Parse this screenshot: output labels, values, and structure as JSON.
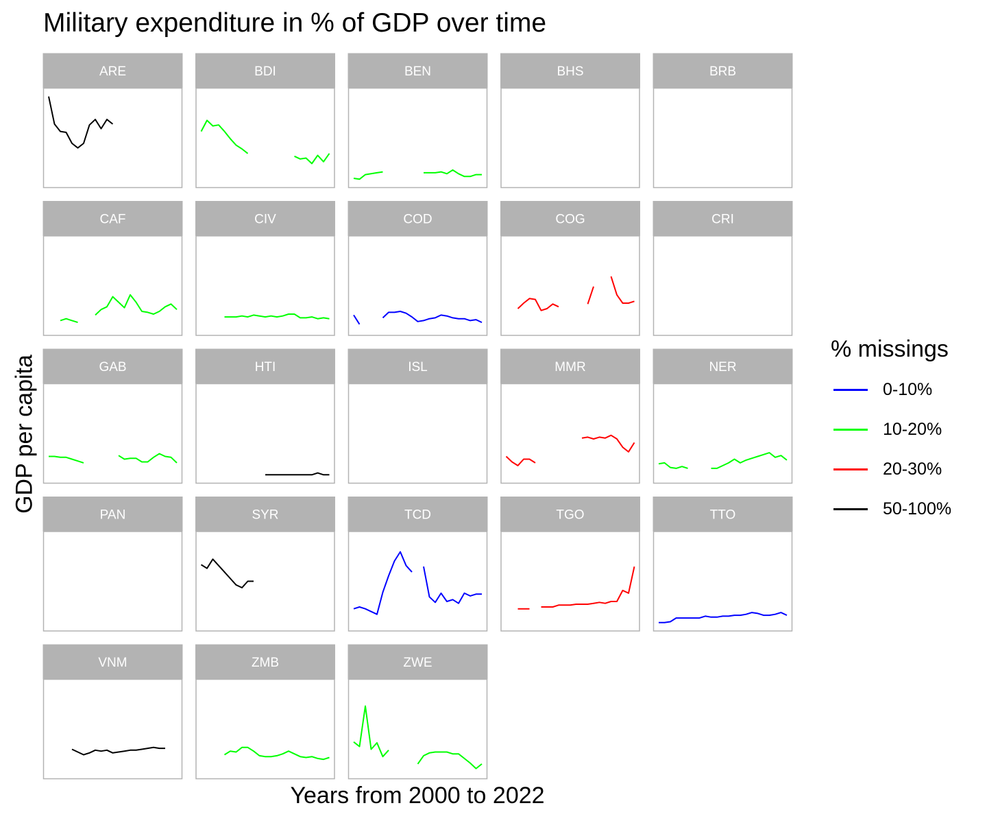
{
  "title": "Military expenditure in % of GDP over time",
  "chart_data": {
    "type": "line",
    "facets": true,
    "title": "Military expenditure in % of GDP over time",
    "xlabel": "Years from 2000 to 2022",
    "ylabel": "GDP per capita",
    "x": [
      2000,
      2001,
      2002,
      2003,
      2004,
      2005,
      2006,
      2007,
      2008,
      2009,
      2010,
      2011,
      2012,
      2013,
      2014,
      2015,
      2016,
      2017,
      2018,
      2019,
      2020,
      2021,
      2022
    ],
    "ylim": [
      0,
      1
    ],
    "xlim": [
      2000,
      2022
    ],
    "grid": false,
    "legend": {
      "title": "% missings",
      "position": "right",
      "items": [
        {
          "label": "0-10%",
          "color": "#0000ff"
        },
        {
          "label": "10-20%",
          "color": "#00ff00"
        },
        {
          "label": "20-30%",
          "color": "#ff0000"
        },
        {
          "label": "50-100%",
          "color": "#000000"
        }
      ]
    },
    "panels": [
      {
        "name": "ARE",
        "group": "50-100%",
        "values": [
          0.95,
          0.65,
          0.57,
          0.56,
          0.44,
          0.39,
          0.44,
          0.64,
          0.7,
          0.6,
          0.7,
          0.65,
          null,
          null,
          null,
          null,
          null,
          null,
          null,
          null,
          null,
          null,
          null
        ]
      },
      {
        "name": "BDI",
        "group": "10-20%",
        "values": [
          0.57,
          0.69,
          0.63,
          0.64,
          0.57,
          0.49,
          0.42,
          0.38,
          0.33,
          null,
          null,
          null,
          null,
          null,
          null,
          null,
          0.3,
          0.27,
          0.28,
          0.22,
          0.31,
          0.24,
          0.33
        ]
      },
      {
        "name": "BEN",
        "group": "10-20%",
        "values": [
          0.06,
          0.05,
          0.1,
          0.11,
          0.12,
          0.13,
          null,
          null,
          null,
          null,
          null,
          null,
          0.12,
          0.12,
          0.12,
          0.13,
          0.11,
          0.15,
          0.11,
          0.08,
          0.08,
          0.1,
          0.1
        ]
      },
      {
        "name": "BHS",
        "group": null,
        "values": []
      },
      {
        "name": "BRB",
        "group": null,
        "values": []
      },
      {
        "name": "CAF",
        "group": "10-20%",
        "values": [
          null,
          null,
          0.12,
          0.14,
          0.12,
          0.1,
          null,
          null,
          0.18,
          0.24,
          0.27,
          0.38,
          0.32,
          0.26,
          0.4,
          0.32,
          0.22,
          0.21,
          0.19,
          0.22,
          0.27,
          0.3,
          0.24
        ]
      },
      {
        "name": "CIV",
        "group": "10-20%",
        "values": [
          null,
          null,
          null,
          null,
          0.16,
          0.16,
          0.16,
          0.17,
          0.16,
          0.18,
          0.17,
          0.16,
          0.17,
          0.16,
          0.17,
          0.19,
          0.19,
          0.15,
          0.15,
          0.16,
          0.14,
          0.15,
          0.14
        ]
      },
      {
        "name": "COD",
        "group": "0-10%",
        "values": [
          0.18,
          0.08,
          null,
          null,
          null,
          0.15,
          0.21,
          0.21,
          0.22,
          0.2,
          0.16,
          0.11,
          0.12,
          0.14,
          0.15,
          0.18,
          0.17,
          0.15,
          0.14,
          0.14,
          0.12,
          0.13,
          0.1
        ]
      },
      {
        "name": "COG",
        "group": "20-30%",
        "values": [
          null,
          null,
          0.25,
          0.31,
          0.36,
          0.35,
          0.23,
          0.25,
          0.3,
          0.27,
          null,
          null,
          null,
          null,
          0.3,
          0.49,
          null,
          null,
          0.6,
          0.4,
          0.31,
          0.31,
          0.33
        ]
      },
      {
        "name": "CRI",
        "group": null,
        "values": []
      },
      {
        "name": "GAB",
        "group": "10-20%",
        "values": [
          0.25,
          0.25,
          0.24,
          0.24,
          0.22,
          0.2,
          0.18,
          null,
          null,
          null,
          null,
          null,
          0.26,
          0.22,
          0.23,
          0.23,
          0.19,
          0.19,
          0.24,
          0.28,
          0.25,
          0.24,
          0.18
        ]
      },
      {
        "name": "HTI",
        "group": "50-100%",
        "values": [
          null,
          null,
          null,
          null,
          null,
          null,
          null,
          null,
          null,
          null,
          null,
          0.05,
          0.05,
          0.05,
          0.05,
          0.05,
          0.05,
          0.05,
          0.05,
          0.05,
          0.07,
          0.05,
          0.05
        ]
      },
      {
        "name": "ISL",
        "group": null,
        "values": []
      },
      {
        "name": "MMR",
        "group": "20-30%",
        "values": [
          0.25,
          0.19,
          0.15,
          0.22,
          0.22,
          0.18,
          null,
          null,
          null,
          null,
          null,
          null,
          null,
          0.45,
          0.46,
          0.44,
          0.46,
          0.45,
          0.48,
          0.44,
          0.35,
          0.3,
          0.4
        ]
      },
      {
        "name": "NER",
        "group": "10-20%",
        "values": [
          0.17,
          0.18,
          0.13,
          0.12,
          0.14,
          0.12,
          null,
          null,
          null,
          0.12,
          0.12,
          0.15,
          0.18,
          0.22,
          0.18,
          0.21,
          0.23,
          0.25,
          0.27,
          0.29,
          0.24,
          0.26,
          0.21
        ]
      },
      {
        "name": "PAN",
        "group": null,
        "values": []
      },
      {
        "name": "SYR",
        "group": "50-100%",
        "values": [
          0.68,
          0.64,
          0.74,
          0.67,
          0.6,
          0.53,
          0.46,
          0.43,
          0.5,
          0.5,
          null,
          null,
          null,
          null,
          null,
          null,
          null,
          null,
          null,
          null,
          null,
          null,
          null
        ]
      },
      {
        "name": "TCD",
        "group": "0-10%",
        "values": [
          0.2,
          0.22,
          0.2,
          0.17,
          0.14,
          0.38,
          0.56,
          0.72,
          0.82,
          0.67,
          0.6,
          null,
          0.66,
          0.33,
          0.27,
          0.37,
          0.28,
          0.3,
          0.26,
          0.37,
          0.34,
          0.36,
          0.36
        ]
      },
      {
        "name": "TGO",
        "group": "20-30%",
        "values": [
          null,
          null,
          0.2,
          0.2,
          0.2,
          null,
          0.22,
          0.22,
          0.22,
          0.24,
          0.24,
          0.24,
          0.25,
          0.25,
          0.25,
          0.26,
          0.27,
          0.26,
          0.28,
          0.28,
          0.4,
          0.37,
          0.66
        ]
      },
      {
        "name": "TTO",
        "group": "0-10%",
        "values": [
          0.05,
          0.05,
          0.06,
          0.1,
          0.1,
          0.1,
          0.1,
          0.1,
          0.12,
          0.11,
          0.11,
          0.12,
          0.12,
          0.13,
          0.13,
          0.14,
          0.16,
          0.15,
          0.13,
          0.13,
          0.14,
          0.16,
          0.13
        ]
      },
      {
        "name": "VNM",
        "group": "50-100%",
        "values": [
          null,
          null,
          null,
          null,
          0.28,
          0.25,
          0.22,
          0.24,
          0.27,
          0.26,
          0.27,
          0.24,
          0.25,
          0.26,
          0.27,
          0.27,
          0.28,
          0.29,
          0.3,
          0.29,
          0.29,
          null,
          null
        ]
      },
      {
        "name": "ZMB",
        "group": "10-20%",
        "values": [
          null,
          null,
          null,
          null,
          0.22,
          0.26,
          0.25,
          0.3,
          0.3,
          0.26,
          0.21,
          0.2,
          0.2,
          0.21,
          0.23,
          0.26,
          0.23,
          0.2,
          0.19,
          0.2,
          0.18,
          0.17,
          0.19
        ]
      },
      {
        "name": "ZWE",
        "group": "10-20%",
        "values": [
          0.36,
          0.31,
          0.75,
          0.28,
          0.35,
          0.2,
          0.27,
          null,
          null,
          null,
          null,
          0.12,
          0.21,
          0.24,
          0.25,
          0.25,
          0.25,
          0.23,
          0.23,
          0.18,
          0.13,
          0.07,
          0.12
        ]
      }
    ]
  }
}
